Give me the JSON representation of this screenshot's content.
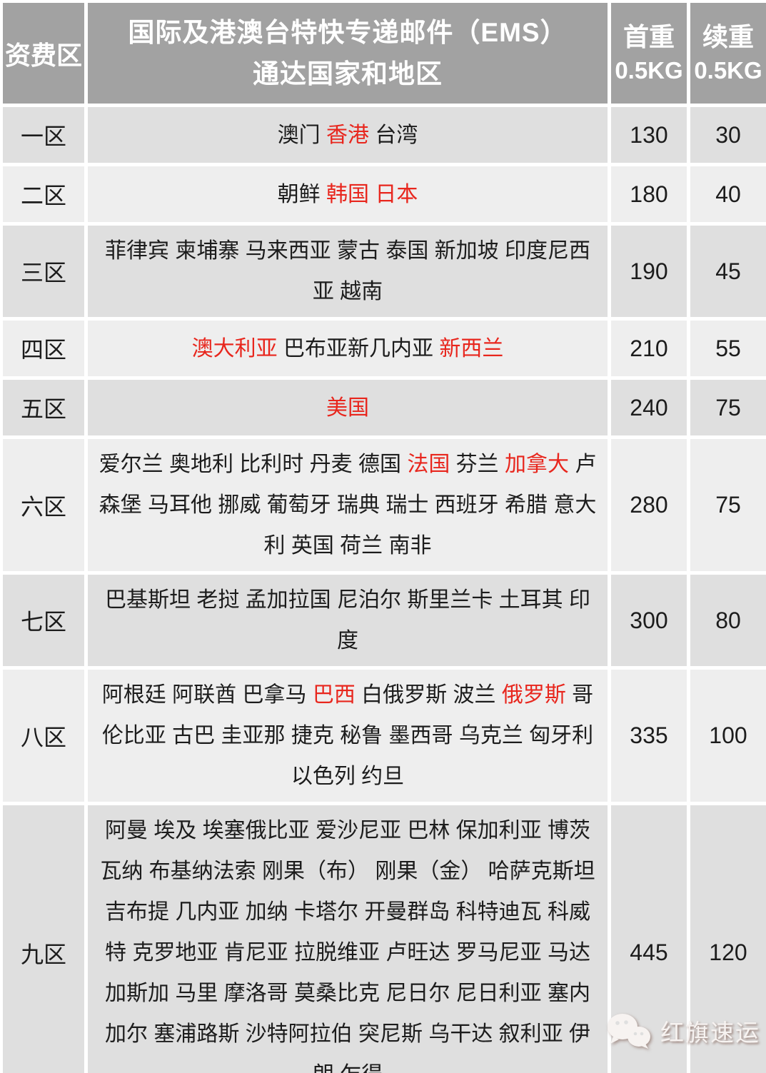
{
  "colors": {
    "header_bg": "#a2a2a2",
    "header_text": "#ffffff",
    "row_odd_bg": "#dfdfdf",
    "row_even_bg": "#eeeeee",
    "red": "#e8261d",
    "text": "#1c1c1c",
    "gap": "#ffffff"
  },
  "header": {
    "zone_label": "资费区",
    "title_line1": "国际及港澳台特快专递邮件（EMS）",
    "title_line2": "通达国家和地区",
    "first_weight_line1": "首重",
    "first_weight_line2": "0.5KG",
    "additional_weight_line1": "续重",
    "additional_weight_line2": "0.5KG"
  },
  "table": {
    "rows": [
      {
        "zone": "一区",
        "countries": [
          {
            "text": "澳门 ",
            "red": false
          },
          {
            "text": "香港",
            "red": true
          },
          {
            "text": " 台湾",
            "red": false
          }
        ],
        "first_weight": "130",
        "additional_weight": "30"
      },
      {
        "zone": "二区",
        "countries": [
          {
            "text": "朝鲜 ",
            "red": false
          },
          {
            "text": "韩国 日本",
            "red": true
          }
        ],
        "first_weight": "180",
        "additional_weight": "40"
      },
      {
        "zone": "三区",
        "countries": [
          {
            "text": "菲律宾 柬埔寨 马来西亚 蒙古 泰国 新加坡 印度尼西亚 越南",
            "red": false
          }
        ],
        "first_weight": "190",
        "additional_weight": "45"
      },
      {
        "zone": "四区",
        "countries": [
          {
            "text": "澳大利亚",
            "red": true
          },
          {
            "text": " 巴布亚新几内亚 ",
            "red": false
          },
          {
            "text": "新西兰",
            "red": true
          }
        ],
        "first_weight": "210",
        "additional_weight": "55"
      },
      {
        "zone": "五区",
        "countries": [
          {
            "text": "美国",
            "red": true
          }
        ],
        "first_weight": "240",
        "additional_weight": "75"
      },
      {
        "zone": "六区",
        "countries": [
          {
            "text": "爱尔兰 奥地利 比利时 丹麦 德国 ",
            "red": false
          },
          {
            "text": "法国",
            "red": true
          },
          {
            "text": " 芬兰 ",
            "red": false
          },
          {
            "text": "加拿大",
            "red": true
          },
          {
            "text": " 卢森堡 马耳他 挪威 葡萄牙 瑞典 瑞士 西班牙 希腊 意大利 英国 荷兰 南非",
            "red": false
          }
        ],
        "first_weight": "280",
        "additional_weight": "75"
      },
      {
        "zone": "七区",
        "countries": [
          {
            "text": "巴基斯坦 老挝 孟加拉国 尼泊尔 斯里兰卡 土耳其 印度",
            "red": false
          }
        ],
        "first_weight": "300",
        "additional_weight": "80"
      },
      {
        "zone": "八区",
        "countries": [
          {
            "text": "阿根廷 阿联酋 巴拿马 ",
            "red": false
          },
          {
            "text": "巴西",
            "red": true
          },
          {
            "text": " 白俄罗斯 波兰 ",
            "red": false
          },
          {
            "text": "俄罗斯",
            "red": true
          },
          {
            "text": " 哥伦比亚 古巴 圭亚那 捷克 秘鲁 墨西哥 乌克兰 匈牙利 以色列 约旦",
            "red": false
          }
        ],
        "first_weight": "335",
        "additional_weight": "100"
      },
      {
        "zone": "九区",
        "countries": [
          {
            "text": "阿曼 埃及 埃塞俄比亚 爱沙尼亚 巴林 保加利亚 博茨瓦纳 布基纳法索 刚果（布） 刚果（金） 哈萨克斯坦 吉布提 几内亚 加纳 卡塔尔 开曼群岛 科特迪瓦 科威特 克罗地亚 肯尼亚 拉脱维亚 卢旺达 罗马尼亚 马达加斯加 马里 摩洛哥 莫桑比克 尼日尔 尼日利亚 塞内加尔 塞浦路斯 沙特阿拉伯 突尼斯 乌干达 叙利亚 伊朗 乍得",
            "red": false
          }
        ],
        "first_weight": "445",
        "additional_weight": "120"
      }
    ]
  },
  "watermark": {
    "brand": "红旗速运",
    "icon": "wechat-icon"
  }
}
